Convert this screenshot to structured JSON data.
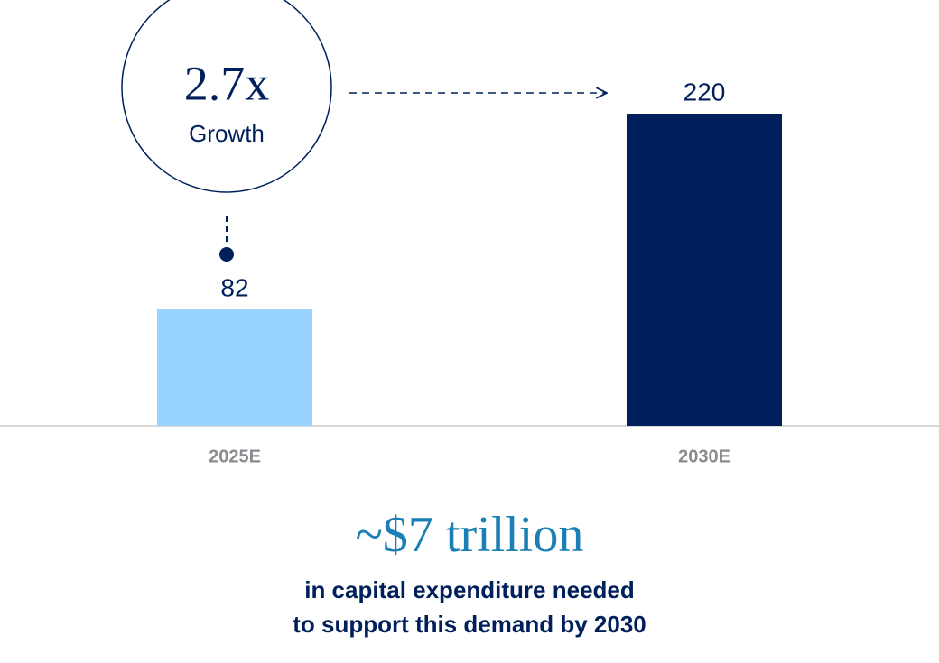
{
  "chart_data": {
    "type": "bar",
    "categories": [
      "2025E",
      "2030E"
    ],
    "values": [
      82,
      220
    ],
    "colors": [
      "#99d3ff",
      "#00205b"
    ],
    "annotation": {
      "value": "2.7x",
      "label": "Growth"
    },
    "headline": "~$7 trillion",
    "footnote": [
      "in capital expenditure needed",
      "to support this demand by 2030"
    ]
  }
}
